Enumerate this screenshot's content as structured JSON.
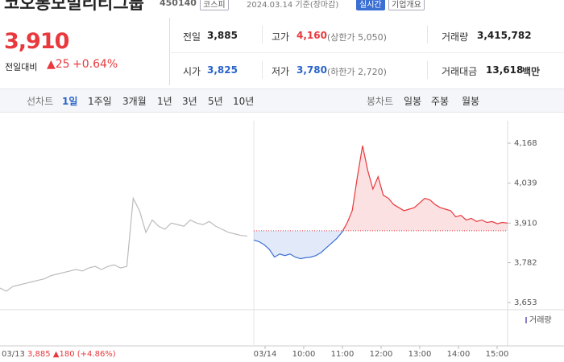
{
  "header": {
    "title": "코오롱모빌리티그룹",
    "code": "450140",
    "market": "코스피",
    "date": "2024.03.14 기준(장마감)",
    "realtime": "실시간",
    "company": "기업개요"
  },
  "price": {
    "current": "3,910",
    "change_label": "전일대비",
    "change": "▲25",
    "rate": "+0.64%"
  },
  "stats": [
    {
      "label": "전일",
      "value": "3,885"
    },
    {
      "label": "고가",
      "value": "4,160",
      "note": "(상한가 5,050)"
    },
    {
      "label": "거래량",
      "value": "3,415,782"
    },
    {
      "label": "시가",
      "value": "3,825"
    },
    {
      "label": "저가",
      "value": "3,780",
      "note": "(하한가 2,720)"
    },
    {
      "label": "거래대금",
      "value": "13,618",
      "unit": "백만"
    }
  ],
  "tabs": {
    "line_label": "선차트",
    "line": [
      "1일",
      "1주일",
      "3개월",
      "1년",
      "3년",
      "5년",
      "10년"
    ],
    "candle_label": "봉차트",
    "candle": [
      "일봉",
      "주봉",
      "월봉"
    ]
  },
  "chart_data": {
    "type": "line",
    "ylim": [
      3630,
      4241
    ],
    "yticks": [
      {
        "value": 3653,
        "label": "3,653"
      },
      {
        "value": 3782,
        "label": "3,782"
      },
      {
        "value": 3910,
        "label": "3,910"
      },
      {
        "value": 4039,
        "label": "4,039"
      },
      {
        "value": 4168,
        "label": "4,168"
      }
    ],
    "baseline": 3885,
    "xticks": [
      "03/14",
      "10:00",
      "11:00",
      "12:00",
      "13:00",
      "14:00",
      "15:00"
    ],
    "prev_day": {
      "date": "03/13",
      "summary": "3,885 ▲180 (+4.86%)",
      "color": "#bbbbbb",
      "values": [
        3700,
        3690,
        3705,
        3710,
        3715,
        3720,
        3725,
        3730,
        3740,
        3745,
        3750,
        3755,
        3760,
        3755,
        3765,
        3770,
        3760,
        3770,
        3775,
        3765,
        3770,
        3990,
        3950,
        3880,
        3920,
        3900,
        3890,
        3910,
        3905,
        3900,
        3920,
        3910,
        3905,
        3915,
        3900,
        3890,
        3880,
        3875,
        3870,
        3868
      ]
    },
    "today": {
      "up_color": "#e8393d",
      "down_color": "#3b6fd4",
      "values": [
        3855,
        3850,
        3840,
        3825,
        3800,
        3810,
        3805,
        3810,
        3800,
        3795,
        3798,
        3800,
        3805,
        3815,
        3830,
        3845,
        3860,
        3880,
        3910,
        3950,
        4060,
        4160,
        4080,
        4020,
        4060,
        4000,
        3990,
        3970,
        3960,
        3950,
        3955,
        3960,
        3975,
        3990,
        3985,
        3970,
        3960,
        3955,
        3950,
        3930,
        3935,
        3920,
        3925,
        3915,
        3920,
        3912,
        3915,
        3908,
        3912,
        3910
      ]
    },
    "volume_label": "거래량"
  }
}
